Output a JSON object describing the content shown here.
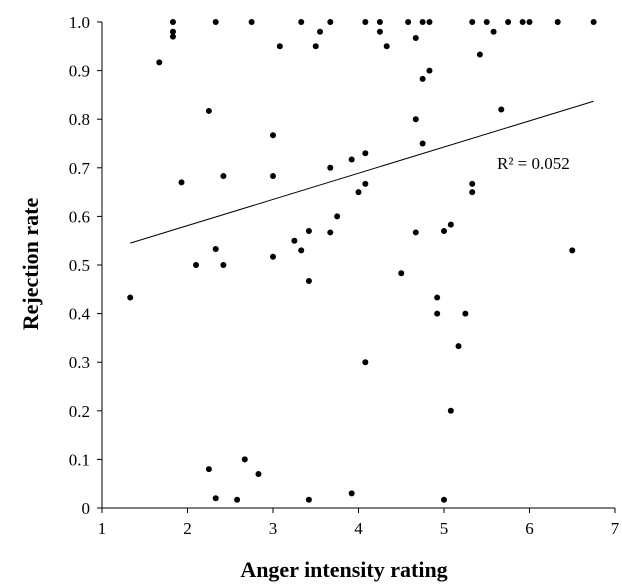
{
  "chart_data": {
    "type": "scatter",
    "title": "",
    "xlabel": "Anger intensity rating",
    "ylabel": "Rejection rate",
    "xlim": [
      1,
      7
    ],
    "ylim": [
      0,
      1.0
    ],
    "x_ticks": [
      "1",
      "2",
      "3",
      "4",
      "5",
      "6",
      "7"
    ],
    "y_ticks": [
      "0",
      "0.1",
      "0.2",
      "0.3",
      "0.4",
      "0.5",
      "0.6",
      "0.7",
      "0.8",
      "0.9",
      "1.0"
    ],
    "grid": false,
    "legend": "none",
    "annotation": "R² = 0.052",
    "trendline": {
      "x": [
        1.33,
        6.75
      ],
      "y": [
        0.545,
        0.837
      ]
    },
    "points": [
      [
        1.33,
        0.433
      ],
      [
        1.67,
        0.917
      ],
      [
        1.83,
        1.0
      ],
      [
        1.83,
        0.98
      ],
      [
        1.83,
        0.97
      ],
      [
        1.93,
        0.67
      ],
      [
        2.1,
        0.5
      ],
      [
        2.25,
        0.817
      ],
      [
        2.25,
        0.08
      ],
      [
        2.33,
        1.0
      ],
      [
        2.33,
        0.533
      ],
      [
        2.33,
        0.02
      ],
      [
        2.42,
        0.683
      ],
      [
        2.42,
        0.5
      ],
      [
        2.58,
        0.017
      ],
      [
        2.67,
        0.1
      ],
      [
        2.75,
        1.0
      ],
      [
        2.83,
        0.07
      ],
      [
        3.0,
        0.767
      ],
      [
        3.0,
        0.683
      ],
      [
        3.0,
        0.517
      ],
      [
        3.08,
        0.95
      ],
      [
        3.25,
        0.55
      ],
      [
        3.33,
        1.0
      ],
      [
        3.33,
        0.53
      ],
      [
        3.42,
        0.57
      ],
      [
        3.42,
        0.467
      ],
      [
        3.42,
        0.017
      ],
      [
        3.5,
        0.95
      ],
      [
        3.55,
        0.98
      ],
      [
        3.67,
        1.0
      ],
      [
        3.67,
        0.7
      ],
      [
        3.67,
        0.567
      ],
      [
        3.75,
        0.6
      ],
      [
        3.92,
        0.717
      ],
      [
        3.92,
        0.03
      ],
      [
        4.0,
        0.65
      ],
      [
        4.08,
        1.0
      ],
      [
        4.08,
        0.73
      ],
      [
        4.08,
        0.667
      ],
      [
        4.08,
        0.3
      ],
      [
        4.25,
        1.0
      ],
      [
        4.25,
        0.98
      ],
      [
        4.33,
        0.95
      ],
      [
        4.5,
        0.483
      ],
      [
        4.58,
        1.0
      ],
      [
        4.67,
        0.967
      ],
      [
        4.67,
        0.8
      ],
      [
        4.67,
        0.567
      ],
      [
        4.75,
        1.0
      ],
      [
        4.75,
        0.883
      ],
      [
        4.75,
        0.75
      ],
      [
        4.83,
        1.0
      ],
      [
        4.83,
        0.9
      ],
      [
        4.92,
        0.433
      ],
      [
        4.92,
        0.4
      ],
      [
        5.0,
        0.57
      ],
      [
        5.0,
        0.017
      ],
      [
        5.08,
        0.583
      ],
      [
        5.08,
        0.2
      ],
      [
        5.17,
        0.333
      ],
      [
        5.25,
        0.4
      ],
      [
        5.33,
        1.0
      ],
      [
        5.33,
        0.667
      ],
      [
        5.33,
        0.65
      ],
      [
        5.42,
        0.933
      ],
      [
        5.5,
        1.0
      ],
      [
        5.58,
        0.98
      ],
      [
        5.67,
        0.82
      ],
      [
        5.75,
        1.0
      ],
      [
        5.92,
        1.0
      ],
      [
        6.0,
        1.0
      ],
      [
        6.33,
        1.0
      ],
      [
        6.5,
        0.53
      ],
      [
        6.75,
        1.0
      ]
    ]
  }
}
